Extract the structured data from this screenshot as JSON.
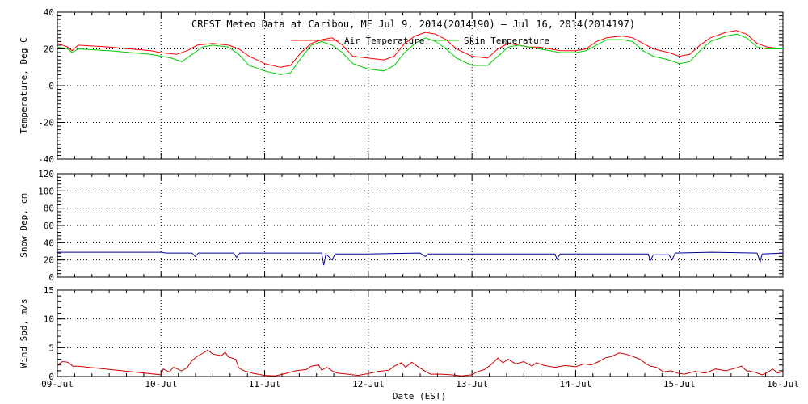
{
  "chart_data": [
    {
      "type": "line",
      "title": "CREST Meteo Data at Caribou, ME   Jul  9, 2014(2014190) — Jul 16, 2014(2014197)",
      "ylabel": "Temperature, Deg C",
      "xlabel": "",
      "ylim": [
        -40,
        40
      ],
      "yticks": [
        "-40",
        "-20",
        "0",
        "20",
        "40"
      ],
      "xlim": [
        0,
        7
      ],
      "grid": true,
      "legend": "top-center",
      "series": [
        {
          "name": "Air Temperature",
          "color": "#ff0000",
          "points": [
            [
              0.0,
              23
            ],
            [
              0.1,
              21
            ],
            [
              0.14,
              19
            ],
            [
              0.2,
              22
            ],
            [
              0.5,
              21
            ],
            [
              0.9,
              19
            ],
            [
              1.0,
              18
            ],
            [
              1.15,
              17
            ],
            [
              1.25,
              19
            ],
            [
              1.35,
              22
            ],
            [
              1.5,
              23
            ],
            [
              1.65,
              22
            ],
            [
              1.75,
              20
            ],
            [
              1.85,
              16
            ],
            [
              2.0,
              12
            ],
            [
              2.15,
              10
            ],
            [
              2.25,
              11
            ],
            [
              2.35,
              18
            ],
            [
              2.45,
              23
            ],
            [
              2.55,
              25
            ],
            [
              2.65,
              26
            ],
            [
              2.75,
              22
            ],
            [
              2.85,
              16
            ],
            [
              3.0,
              15
            ],
            [
              3.15,
              14
            ],
            [
              3.25,
              16
            ],
            [
              3.35,
              23
            ],
            [
              3.45,
              27
            ],
            [
              3.55,
              29
            ],
            [
              3.65,
              28
            ],
            [
              3.75,
              25
            ],
            [
              3.85,
              20
            ],
            [
              4.0,
              16
            ],
            [
              4.15,
              15
            ],
            [
              4.25,
              20
            ],
            [
              4.35,
              23
            ],
            [
              4.45,
              22
            ],
            [
              4.55,
              21
            ],
            [
              4.65,
              21
            ],
            [
              4.75,
              20
            ],
            [
              4.85,
              19
            ],
            [
              5.0,
              19
            ],
            [
              5.1,
              20
            ],
            [
              5.2,
              24
            ],
            [
              5.3,
              26
            ],
            [
              5.45,
              27
            ],
            [
              5.55,
              26
            ],
            [
              5.65,
              23
            ],
            [
              5.75,
              20
            ],
            [
              5.9,
              18
            ],
            [
              6.0,
              16
            ],
            [
              6.1,
              17
            ],
            [
              6.2,
              22
            ],
            [
              6.3,
              26
            ],
            [
              6.45,
              29
            ],
            [
              6.55,
              30
            ],
            [
              6.65,
              28
            ],
            [
              6.75,
              23
            ],
            [
              6.85,
              21
            ],
            [
              7.0,
              20
            ]
          ]
        },
        {
          "name": "Skin Temperature",
          "color": "#00cc00",
          "points": [
            [
              0.0,
              21
            ],
            [
              0.1,
              20
            ],
            [
              0.14,
              18
            ],
            [
              0.2,
              20
            ],
            [
              0.5,
              19
            ],
            [
              0.9,
              17
            ],
            [
              1.0,
              16
            ],
            [
              1.1,
              15
            ],
            [
              1.2,
              13
            ],
            [
              1.3,
              17
            ],
            [
              1.4,
              21
            ],
            [
              1.5,
              22
            ],
            [
              1.65,
              21
            ],
            [
              1.75,
              17
            ],
            [
              1.85,
              11
            ],
            [
              2.0,
              8
            ],
            [
              2.15,
              6
            ],
            [
              2.25,
              7
            ],
            [
              2.35,
              15
            ],
            [
              2.45,
              22
            ],
            [
              2.55,
              24
            ],
            [
              2.65,
              22
            ],
            [
              2.75,
              18
            ],
            [
              2.85,
              12
            ],
            [
              3.0,
              9
            ],
            [
              3.15,
              8
            ],
            [
              3.25,
              11
            ],
            [
              3.35,
              18
            ],
            [
              3.45,
              23
            ],
            [
              3.55,
              26
            ],
            [
              3.65,
              24
            ],
            [
              3.75,
              20
            ],
            [
              3.85,
              15
            ],
            [
              4.0,
              11
            ],
            [
              4.15,
              11
            ],
            [
              4.25,
              16
            ],
            [
              4.35,
              21
            ],
            [
              4.45,
              22
            ],
            [
              4.55,
              21
            ],
            [
              4.65,
              20
            ],
            [
              4.75,
              19
            ],
            [
              4.85,
              18
            ],
            [
              5.0,
              18
            ],
            [
              5.1,
              19
            ],
            [
              5.2,
              22
            ],
            [
              5.3,
              25
            ],
            [
              5.45,
              25
            ],
            [
              5.55,
              24
            ],
            [
              5.65,
              19
            ],
            [
              5.75,
              16
            ],
            [
              5.9,
              14
            ],
            [
              6.0,
              12
            ],
            [
              6.1,
              13
            ],
            [
              6.2,
              19
            ],
            [
              6.3,
              24
            ],
            [
              6.45,
              27
            ],
            [
              6.55,
              28
            ],
            [
              6.65,
              26
            ],
            [
              6.75,
              21
            ],
            [
              6.85,
              20
            ],
            [
              7.0,
              20
            ]
          ]
        }
      ]
    },
    {
      "type": "line",
      "ylabel": "Snow Dep, cm",
      "xlabel": "",
      "ylim": [
        0,
        120
      ],
      "yticks": [
        "0",
        "20",
        "40",
        "60",
        "80",
        "100",
        "120"
      ],
      "xlim": [
        0,
        7
      ],
      "grid": true,
      "series": [
        {
          "color": "#000099",
          "points": [
            [
              0.0,
              29
            ],
            [
              0.5,
              29
            ],
            [
              1.0,
              29
            ],
            [
              1.05,
              28
            ],
            [
              1.3,
              28
            ],
            [
              1.33,
              24
            ],
            [
              1.36,
              28
            ],
            [
              1.7,
              28
            ],
            [
              1.73,
              23
            ],
            [
              1.76,
              28
            ],
            [
              2.3,
              28
            ],
            [
              2.55,
              28
            ],
            [
              2.57,
              14
            ],
            [
              2.59,
              27
            ],
            [
              2.65,
              20
            ],
            [
              2.68,
              27
            ],
            [
              3.0,
              27
            ],
            [
              3.5,
              28
            ],
            [
              3.55,
              24
            ],
            [
              3.58,
              27
            ],
            [
              4.0,
              27
            ],
            [
              4.5,
              27
            ],
            [
              4.8,
              27
            ],
            [
              4.82,
              21
            ],
            [
              4.85,
              27
            ],
            [
              5.0,
              27
            ],
            [
              5.5,
              27
            ],
            [
              5.7,
              27
            ],
            [
              5.72,
              19
            ],
            [
              5.75,
              26
            ],
            [
              5.9,
              26
            ],
            [
              5.93,
              20
            ],
            [
              5.96,
              28
            ],
            [
              6.3,
              29
            ],
            [
              6.75,
              28
            ],
            [
              6.78,
              18
            ],
            [
              6.8,
              27
            ],
            [
              7.0,
              28
            ]
          ]
        }
      ]
    },
    {
      "type": "line",
      "ylabel": "Wind Spd, m/s",
      "xlabel": "Date (EST)",
      "ylim": [
        0,
        15
      ],
      "yticks": [
        "0",
        "5",
        "10",
        "15"
      ],
      "xlim": [
        0,
        7
      ],
      "grid": true,
      "series": [
        {
          "color": "#cc0000",
          "points": [
            [
              0.0,
              2.0
            ],
            [
              0.05,
              2.6
            ],
            [
              0.1,
              2.5
            ],
            [
              0.15,
              1.8
            ],
            [
              0.2,
              1.8
            ],
            [
              1.0,
              0.3
            ],
            [
              1.02,
              1.3
            ],
            [
              1.08,
              0.8
            ],
            [
              1.12,
              1.6
            ],
            [
              1.2,
              1.0
            ],
            [
              1.25,
              1.5
            ],
            [
              1.3,
              2.8
            ],
            [
              1.35,
              3.5
            ],
            [
              1.42,
              4.2
            ],
            [
              1.45,
              4.6
            ],
            [
              1.5,
              3.9
            ],
            [
              1.58,
              3.6
            ],
            [
              1.62,
              4.2
            ],
            [
              1.65,
              3.4
            ],
            [
              1.72,
              3.0
            ],
            [
              1.75,
              1.5
            ],
            [
              1.8,
              1.0
            ],
            [
              1.9,
              0.5
            ],
            [
              2.0,
              0.2
            ],
            [
              2.1,
              0.1
            ],
            [
              2.2,
              0.5
            ],
            [
              2.3,
              1.0
            ],
            [
              2.4,
              1.2
            ],
            [
              2.45,
              1.8
            ],
            [
              2.52,
              2.0
            ],
            [
              2.55,
              1.1
            ],
            [
              2.6,
              1.6
            ],
            [
              2.65,
              1.0
            ],
            [
              2.7,
              0.6
            ],
            [
              2.8,
              0.4
            ],
            [
              2.9,
              0.2
            ],
            [
              3.0,
              0.5
            ],
            [
              3.1,
              0.9
            ],
            [
              3.2,
              1.1
            ],
            [
              3.25,
              1.8
            ],
            [
              3.32,
              2.4
            ],
            [
              3.36,
              1.6
            ],
            [
              3.42,
              2.5
            ],
            [
              3.48,
              1.7
            ],
            [
              3.55,
              0.9
            ],
            [
              3.6,
              0.4
            ],
            [
              3.7,
              0.4
            ],
            [
              3.8,
              0.3
            ],
            [
              3.9,
              0.1
            ],
            [
              4.0,
              0.3
            ],
            [
              4.05,
              0.8
            ],
            [
              4.12,
              1.2
            ],
            [
              4.18,
              2.0
            ],
            [
              4.25,
              3.2
            ],
            [
              4.3,
              2.4
            ],
            [
              4.35,
              3.0
            ],
            [
              4.42,
              2.2
            ],
            [
              4.5,
              2.6
            ],
            [
              4.58,
              1.8
            ],
            [
              4.62,
              2.4
            ],
            [
              4.7,
              1.9
            ],
            [
              4.8,
              1.6
            ],
            [
              4.9,
              1.9
            ],
            [
              5.0,
              1.7
            ],
            [
              5.08,
              2.2
            ],
            [
              5.15,
              2.0
            ],
            [
              5.22,
              2.6
            ],
            [
              5.28,
              3.2
            ],
            [
              5.35,
              3.5
            ],
            [
              5.42,
              4.1
            ],
            [
              5.48,
              3.9
            ],
            [
              5.55,
              3.5
            ],
            [
              5.62,
              3.0
            ],
            [
              5.68,
              2.2
            ],
            [
              5.72,
              1.8
            ],
            [
              5.78,
              1.6
            ],
            [
              5.85,
              0.8
            ],
            [
              5.92,
              1.0
            ],
            [
              5.98,
              0.6
            ],
            [
              6.05,
              0.4
            ],
            [
              6.15,
              0.9
            ],
            [
              6.25,
              0.6
            ],
            [
              6.35,
              1.3
            ],
            [
              6.45,
              1.0
            ],
            [
              6.55,
              1.5
            ],
            [
              6.6,
              1.8
            ],
            [
              6.65,
              1.0
            ],
            [
              6.72,
              0.8
            ],
            [
              6.8,
              0.3
            ],
            [
              6.85,
              0.7
            ],
            [
              6.9,
              1.3
            ],
            [
              6.95,
              0.6
            ],
            [
              7.0,
              0.9
            ]
          ]
        }
      ]
    }
  ],
  "x_ticks": [
    "09-Jul",
    "10-Jul",
    "11-Jul",
    "12-Jul",
    "13-Jul",
    "14-Jul",
    "15-Jul",
    "16-Jul"
  ]
}
